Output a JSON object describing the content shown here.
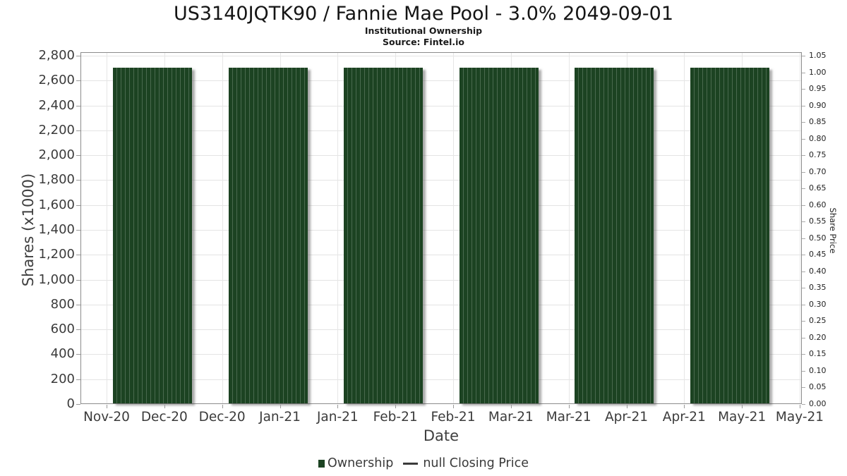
{
  "header": {
    "title": "US3140JQTK90 / Fannie Mae Pool - 3.0% 2049-09-01",
    "subtitle": "Institutional Ownership",
    "source": "Source: Fintel.io"
  },
  "chart_data": {
    "type": "bar",
    "title": "US3140JQTK90 / Fannie Mae Pool - 3.0% 2049-09-01",
    "subtitle": "Institutional Ownership",
    "source": "Source: Fintel.io",
    "xlabel": "Date",
    "ylabel_left": "Shares (x1000)",
    "ylabel_right": "Share Price",
    "x_tick_labels": [
      "Nov-20",
      "Dec-20",
      "Dec-20",
      "Jan-21",
      "Jan-21",
      "Feb-21",
      "Feb-21",
      "Mar-21",
      "Mar-21",
      "Apr-21",
      "Apr-21",
      "May-21",
      "May-21"
    ],
    "y_axis_left": {
      "min": 0,
      "max": 2800,
      "step": 200
    },
    "y_axis_right": {
      "min": 0.0,
      "max": 1.05,
      "step": 0.05
    },
    "grid": true,
    "legend_position": "bottom",
    "series": [
      {
        "name": "Ownership",
        "type": "bar",
        "color": "#1c4322",
        "values": [
          2700,
          2700,
          2700,
          2700,
          2700,
          2700
        ]
      },
      {
        "name": "null Closing Price",
        "type": "line",
        "color": "#3b3b3b",
        "values": []
      }
    ],
    "legend": [
      {
        "label": "Ownership",
        "marker": "square",
        "color": "#1c4322"
      },
      {
        "label": "null Closing Price",
        "marker": "line",
        "color": "#3b3b3b"
      }
    ]
  }
}
